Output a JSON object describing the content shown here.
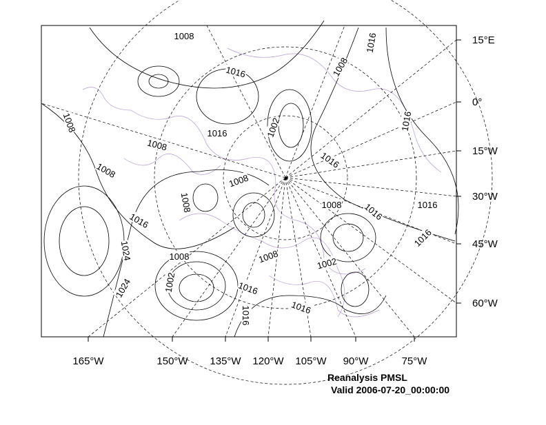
{
  "map": {
    "bottom_labels": [
      "165°W",
      "150°W",
      "135°W",
      "120°W",
      "105°W",
      "90°W",
      "75°W"
    ],
    "right_labels": [
      "15°E",
      "0°",
      "15°W",
      "30°W",
      "45°W",
      "60°W"
    ],
    "contour_labels": [
      1008,
      1016,
      1008,
      1016,
      1008,
      1016,
      1008,
      1002,
      1016,
      1016,
      1008,
      1008,
      1008,
      1008,
      1016,
      1016,
      1016,
      1024,
      1016,
      1008,
      1008,
      1002,
      1002,
      1024,
      1016,
      1016,
      1016
    ],
    "title": "Reanalysis PMSL",
    "subtitle": "Valid 2006-07-20_00:00:00"
  }
}
